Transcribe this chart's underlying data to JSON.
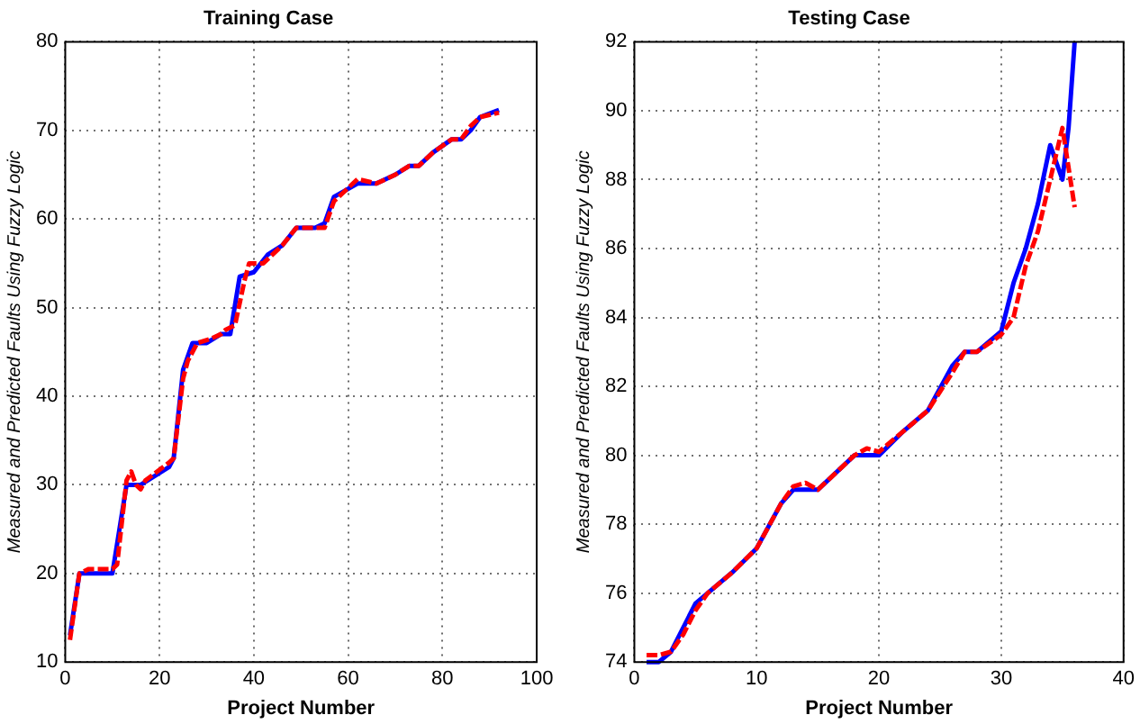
{
  "chart_data": [
    {
      "type": "line",
      "title": "Training Case",
      "xlabel": "Project Number",
      "ylabel": "Measured and Predicted Faults Using Fuzzy Logic",
      "xlim": [
        0,
        100
      ],
      "xticks": [
        0,
        20,
        40,
        60,
        80,
        100
      ],
      "ylim": [
        10,
        80
      ],
      "yticks": [
        10,
        20,
        30,
        40,
        50,
        60,
        70,
        80
      ],
      "grid": true,
      "marker": "none",
      "series": [
        {
          "color": "#0000ff",
          "line_style": "solid",
          "x": [
            1,
            3,
            10,
            13,
            16,
            22,
            23,
            25,
            27,
            30,
            33,
            35,
            37,
            40,
            43,
            46,
            49,
            53,
            55,
            57,
            62,
            66,
            70,
            73,
            75,
            78,
            82,
            84,
            86,
            88,
            92
          ],
          "values": [
            13,
            20,
            20,
            30,
            30,
            32,
            33,
            43,
            46,
            46,
            47,
            47,
            53.5,
            54,
            56,
            57,
            59,
            59,
            59.5,
            62.5,
            64,
            64,
            65,
            66,
            66,
            67.5,
            69,
            69,
            70,
            71.5,
            72.3
          ]
        },
        {
          "color": "#ff0000",
          "line_style": "dashed",
          "x": [
            1,
            3,
            5,
            7,
            10,
            11,
            13,
            14,
            15,
            16,
            17,
            22,
            23,
            25,
            26,
            28,
            31,
            33,
            34,
            36,
            38,
            39,
            42,
            46,
            49,
            53,
            55,
            57,
            62,
            66,
            70,
            73,
            75,
            78,
            82,
            84,
            86,
            88,
            92
          ],
          "values": [
            12.5,
            20,
            20.5,
            20.5,
            20.5,
            21,
            30.5,
            31.5,
            30,
            29.5,
            30.5,
            32.5,
            33,
            42,
            44,
            46,
            46.5,
            47,
            47.5,
            48,
            53,
            55,
            55,
            57,
            59,
            59,
            59,
            62,
            64.5,
            64,
            65,
            66,
            66,
            67.5,
            69,
            69,
            70.5,
            71.5,
            72
          ]
        }
      ]
    },
    {
      "type": "line",
      "title": "Testing Case",
      "xlabel": "Project Number",
      "ylabel": "Measured and Predicted Faults Using Fuzzy Logic",
      "xlim": [
        0,
        40
      ],
      "xticks": [
        0,
        10,
        20,
        30,
        40
      ],
      "ylim": [
        74,
        92
      ],
      "yticks": [
        74,
        76,
        78,
        80,
        82,
        84,
        86,
        88,
        90,
        92
      ],
      "grid": true,
      "marker": "none",
      "series": [
        {
          "color": "#0000ff",
          "line_style": "solid",
          "x": [
            1,
            2,
            3,
            5,
            6,
            8,
            10,
            12,
            13,
            15,
            18,
            20,
            22,
            24,
            26,
            27,
            28,
            30,
            31,
            32,
            33,
            34,
            35,
            35.5,
            36
          ],
          "values": [
            74,
            74,
            74.3,
            75.7,
            76,
            76.6,
            77.3,
            78.6,
            79,
            79,
            80,
            80,
            80.7,
            81.3,
            82.6,
            83,
            83,
            83.6,
            85,
            86,
            87.3,
            89,
            88,
            89.5,
            92
          ]
        },
        {
          "color": "#ff0000",
          "line_style": "dashed",
          "x": [
            1,
            2,
            3,
            4,
            5,
            6,
            8,
            10,
            12,
            13,
            14,
            15,
            18,
            19,
            20,
            22,
            24,
            26,
            27,
            28,
            30,
            31,
            32,
            33,
            34,
            35,
            36
          ],
          "values": [
            74.2,
            74.2,
            74.3,
            74.8,
            75.5,
            76,
            76.6,
            77.3,
            78.6,
            79.1,
            79.2,
            79,
            80,
            80.2,
            80.1,
            80.7,
            81.3,
            82.4,
            83,
            83,
            83.5,
            84,
            85.5,
            86.5,
            88,
            89.5,
            87.2
          ]
        }
      ]
    }
  ]
}
